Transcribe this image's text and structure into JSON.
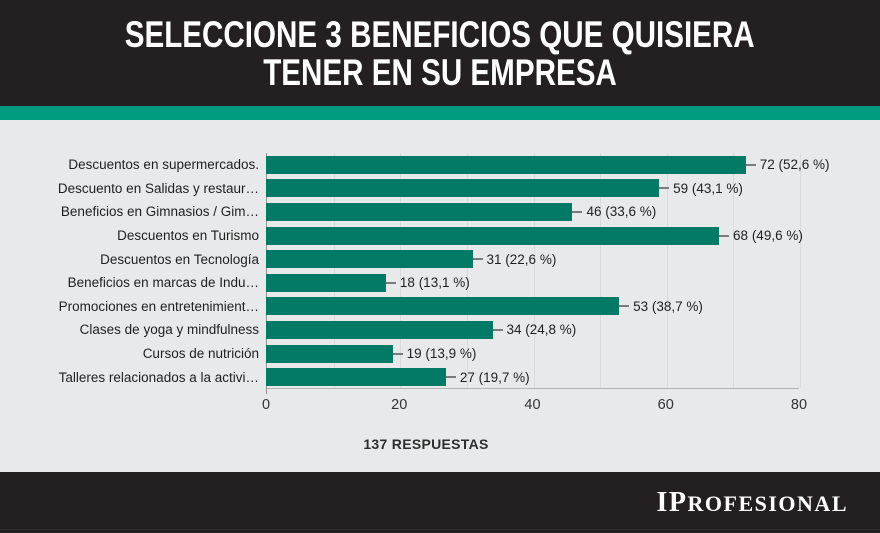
{
  "header": {
    "title_lines": [
      "SELECCIONE 3 BENEFICIOS QUE QUISIERA",
      "TENER EN SU EMPRESA"
    ]
  },
  "chart_data": {
    "type": "bar",
    "orientation": "horizontal",
    "categories": [
      "Descuentos en supermercados.",
      "Descuento en Salidas y restaur…",
      "Beneficios en Gimnasios / Gim…",
      "Descuentos en Turismo",
      "Descuentos en Tecnología",
      "Beneficios en marcas de Indu…",
      "Promociones en entretenimient…",
      "Clases de yoga y mindfulness",
      "Cursos de nutrición",
      "Talleres relacionados a la activi…"
    ],
    "values": [
      72,
      59,
      46,
      68,
      31,
      18,
      53,
      34,
      19,
      27
    ],
    "value_labels": [
      "72 (52,6 %)",
      "59 (43,1 %)",
      "46 (33,6 %)",
      "68 (49,6 %)",
      "31 (22,6 %)",
      "18 (13,1 %)",
      "53 (38,7 %)",
      "34 (24,8 %)",
      "19 (13,9 %)",
      "27 (19,7 %)"
    ],
    "x_ticks": [
      0,
      20,
      40,
      60,
      80
    ],
    "xlim": [
      0,
      80
    ],
    "grid_step": 10,
    "grid": true,
    "legend": false,
    "note": "137 RESPUESTAS",
    "bar_color": "#037a66"
  },
  "footer": {
    "brand": "IPROFESIONAL"
  },
  "colors": {
    "header_bg": "#242021",
    "accent_stripe": "#019b82",
    "chart_bg": "#e8e9ea",
    "bar": "#037a66",
    "footer_bg": "#242021",
    "title_text": "#ffffff",
    "label_text": "#1f1f1f"
  }
}
